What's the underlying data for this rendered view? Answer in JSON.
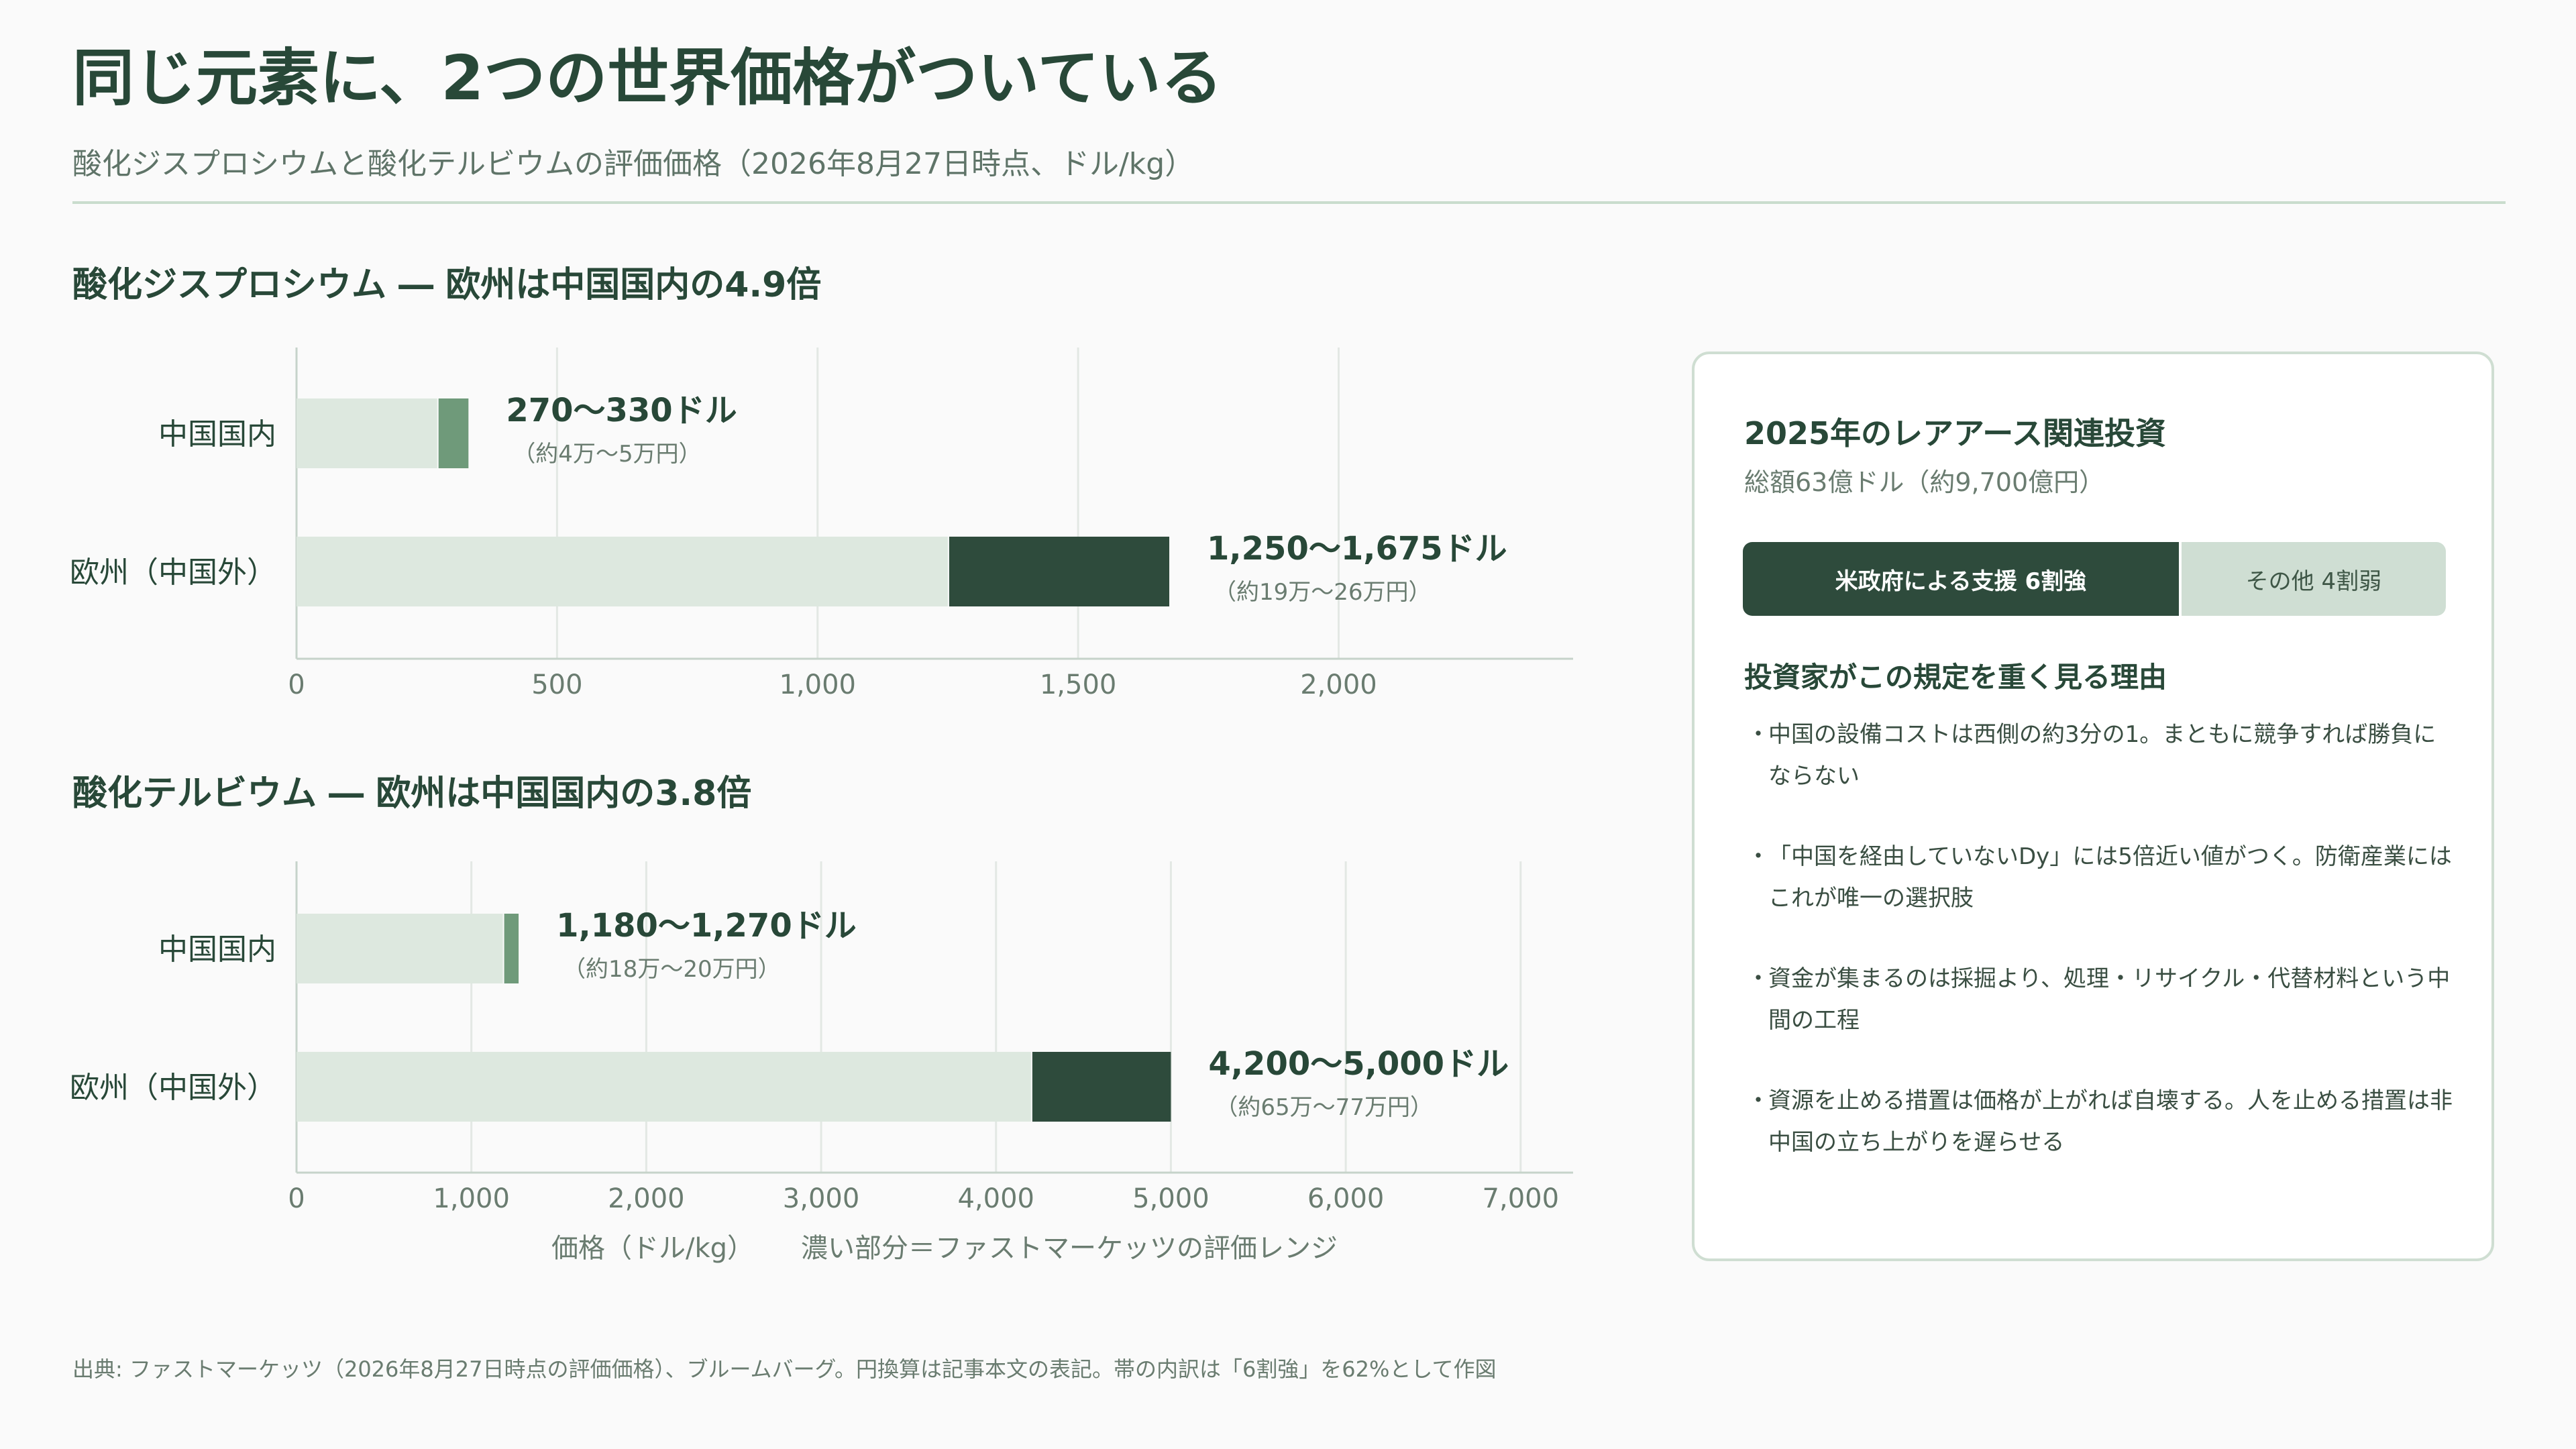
{
  "title": "同じ元素に、2つの世界価格がついている",
  "subtitle": "酸化ジスプロシウムと酸化テルビウムの評価価格（2026年8月27日時点、ドル/kg）",
  "sections": [
    {
      "title": "酸化ジスプロシウム ― 欧州は中国国内の4.9倍"
    },
    {
      "title": "酸化テルビウム ― 欧州は中国国内の3.8倍"
    }
  ],
  "colors": {
    "light_bar": "#dde8df",
    "china_range": "#6f9a7a",
    "europe_range": "#2e4b3c",
    "text_dark": "#284838",
    "grid": "#e3e8e4"
  },
  "chart_data": [
    {
      "type": "bar",
      "orientation": "horizontal",
      "stacked_range": true,
      "title": "酸化ジスプロシウム ― 欧州は中国国内の4.9倍",
      "categories": [
        "中国国内",
        "欧州（中国外）"
      ],
      "range_low": [
        270,
        1250
      ],
      "range_high": [
        330,
        1675
      ],
      "value_labels": [
        "270〜330ドル",
        "1,250〜1,675ドル"
      ],
      "yen_labels": [
        "（約4万〜5万円）",
        "（約19万〜26万円）"
      ],
      "xlim": [
        0,
        2450
      ],
      "xticks": [
        0,
        500,
        1000,
        1500,
        2000
      ],
      "xtick_labels": [
        "0",
        "500",
        "1,000",
        "1,500",
        "2,000"
      ],
      "grid": true
    },
    {
      "type": "bar",
      "orientation": "horizontal",
      "stacked_range": true,
      "title": "酸化テルビウム ― 欧州は中国国内の3.8倍",
      "categories": [
        "中国国内",
        "欧州（中国外）"
      ],
      "range_low": [
        1180,
        4200
      ],
      "range_high": [
        1270,
        5000
      ],
      "value_labels": [
        "1,180〜1,270ドル",
        "4,200〜5,000ドル"
      ],
      "yen_labels": [
        "（約18万〜20万円）",
        "（約65万〜77万円）"
      ],
      "xlim": [
        0,
        7300
      ],
      "xticks": [
        0,
        1000,
        2000,
        3000,
        4000,
        5000,
        6000,
        7000
      ],
      "xtick_labels": [
        "0",
        "1,000",
        "2,000",
        "3,000",
        "4,000",
        "5,000",
        "6,000",
        "7,000"
      ],
      "xlabel": "価格（ドル/kg）",
      "legend_note": "濃い部分＝ファストマーケッツの評価レンジ",
      "grid": true
    }
  ],
  "panel": {
    "title": "2025年のレアアース関連投資",
    "subtitle": "総額63億ドル（約9,700億円）",
    "split": [
      {
        "label": "米政府による支援 6割強",
        "share": 62
      },
      {
        "label": "その他 4割弱",
        "share": 38
      }
    ],
    "reasons_title": "投資家がこの規定を重く見る理由",
    "bullet": "・",
    "reasons": [
      "中国の設備コストは西側の約3分の1。まともに競争すれば勝負にならない",
      "「中国を経由していないDy」には5倍近い値がつく。防衛産業にはこれが唯一の選択肢",
      "資金が集まるのは採掘より、処理・リサイクル・代替材料という中間の工程",
      "資源を止める措置は価格が上がれば自壊する。人を止める措置は非中国の立ち上がりを遅らせる"
    ]
  },
  "footer": "出典: ファストマーケッツ（2026年8月27日時点の評価価格）、ブルームバーグ。円換算は記事本文の表記。帯の内訳は「6割強」を62%として作図"
}
